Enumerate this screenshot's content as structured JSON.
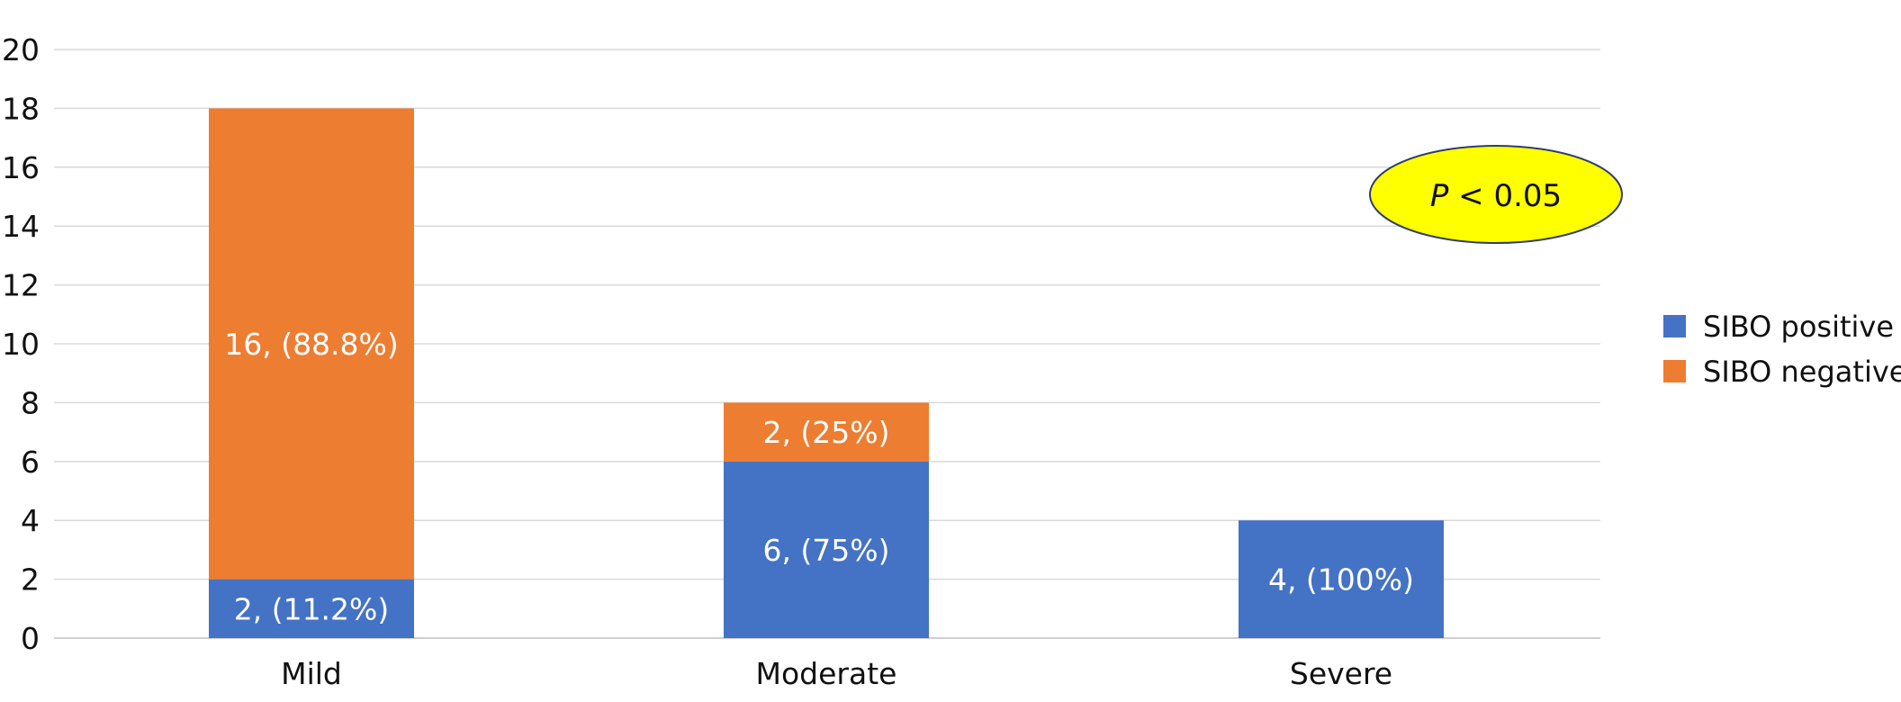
{
  "chart_data": {
    "type": "bar",
    "stacked": true,
    "categories": [
      "Mild",
      "Moderate",
      "Severe"
    ],
    "series": [
      {
        "name": "SIBO positive",
        "color": "#4472C4",
        "values": [
          2,
          6,
          4
        ],
        "labels": [
          "2, (11.2%)",
          "6, (75%)",
          "4, (100%)"
        ]
      },
      {
        "name": "SIBO negative",
        "color": "#ED7D31",
        "values": [
          16,
          2,
          0
        ],
        "labels": [
          "16, (88.8%)",
          "2, (25%)",
          ""
        ]
      }
    ],
    "ylim": [
      0,
      20
    ],
    "yticks": [
      "0",
      "2",
      "4",
      "6",
      "8",
      "10",
      "12",
      "14",
      "16",
      "18",
      "20"
    ],
    "grid": true,
    "legend_position": "right",
    "annotation": {
      "italic": "P",
      "rest": " < 0.05",
      "fill": "#FFFF00",
      "stroke": "#2F3D6B"
    }
  }
}
